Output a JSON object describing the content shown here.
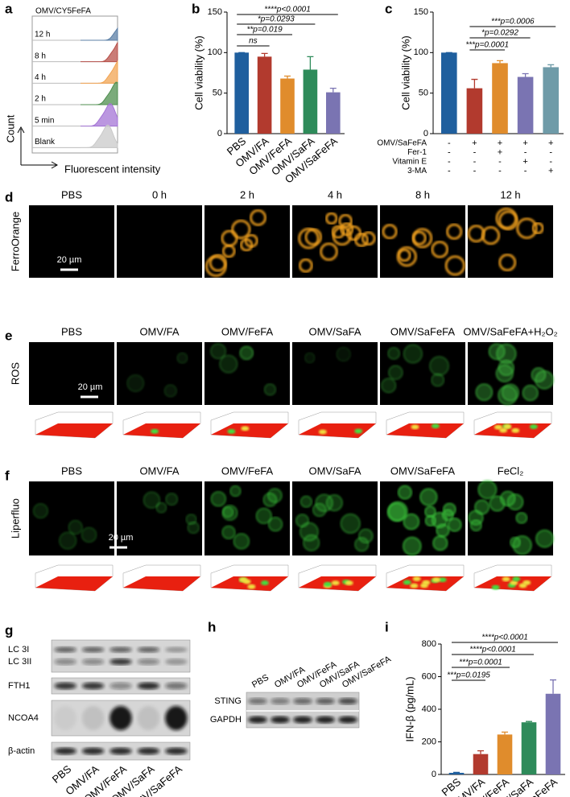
{
  "panel_labels": [
    "a",
    "b",
    "c",
    "d",
    "e",
    "f",
    "g",
    "h",
    "i"
  ],
  "panel_a": {
    "title": "OMV/CY5FeFA",
    "rows": [
      "12 h",
      "8 h",
      "4 h",
      "2 h",
      "5 min",
      "Blank"
    ],
    "y_label": "Count",
    "x_label": "Fluorescent intensity"
  },
  "chart_data": [
    {
      "type": "bar",
      "y_label": "Cell viability (%)",
      "categories": [
        "PBS",
        "OMV/FA",
        "OMV/FeFA",
        "OMV/SaFA",
        "OMV/SaFeFA"
      ],
      "values": [
        100,
        95,
        68,
        79,
        51
      ],
      "errors": [
        0,
        4,
        3,
        16,
        5
      ],
      "colors": [
        "#1f5f9e",
        "#b23a2e",
        "#e08c2c",
        "#2e8b5a",
        "#7a74b2"
      ],
      "ylim": [
        0,
        150
      ],
      "yticks": [
        0,
        50,
        100,
        150
      ],
      "annotations": [
        "ns",
        "**p=0.019",
        "*p=0.0293",
        "****p<0.0001"
      ]
    },
    {
      "type": "bar",
      "y_label": "Cell viability (%)",
      "values": [
        100,
        56,
        87,
        70,
        82
      ],
      "errors": [
        0,
        11,
        3,
        4,
        3
      ],
      "colors": [
        "#1f5f9e",
        "#b23a2e",
        "#e08c2c",
        "#7a74b2",
        "#6f9ba8"
      ],
      "ylim": [
        0,
        150
      ],
      "yticks": [
        0,
        50,
        100,
        150
      ],
      "annotations": [
        "***p=0.0001",
        "*p=0.0292",
        "***p=0.0006"
      ],
      "treatments": [
        {
          "label": "OMV/SaFeFA",
          "signs": [
            "-",
            "+",
            "+",
            "+",
            "+"
          ]
        },
        {
          "label": "Fer-1",
          "signs": [
            "-",
            "-",
            "+",
            "-",
            "-"
          ]
        },
        {
          "label": "Vitamin E",
          "signs": [
            "-",
            "-",
            "-",
            "+",
            "-"
          ]
        },
        {
          "label": "3-MA",
          "signs": [
            "-",
            "-",
            "-",
            "-",
            "+"
          ]
        }
      ]
    },
    {
      "type": "bar",
      "y_label": "IFN-β (pg/mL)",
      "categories": [
        "PBS",
        "OMV/FA",
        "OMV/FeFA",
        "OMV/SaFA",
        "OMV/SaFeFA"
      ],
      "values": [
        10,
        125,
        245,
        320,
        495
      ],
      "errors": [
        3,
        20,
        15,
        5,
        85
      ],
      "colors": [
        "#1f5f9e",
        "#b23a2e",
        "#e08c2c",
        "#2e8b5a",
        "#7a74b2"
      ],
      "ylim": [
        0,
        800
      ],
      "yticks": [
        0,
        200,
        400,
        600,
        800
      ],
      "annotations": [
        "***p=0.0195",
        "***p=0.0001",
        "****p<0.0001",
        "****p<0.0001"
      ]
    }
  ],
  "panel_d": {
    "stain": "FerroOrange",
    "columns": [
      "PBS",
      "0 h",
      "2 h",
      "4 h",
      "8 h",
      "12 h"
    ],
    "scale_bar": "20 µm"
  },
  "panel_e": {
    "stain": "ROS",
    "columns": [
      "PBS",
      "OMV/FA",
      "OMV/FeFA",
      "OMV/SaFA",
      "OMV/SaFeFA",
      "OMV/SaFeFA+H₂O₂"
    ],
    "scale_bar": "20 µm"
  },
  "panel_f": {
    "stain": "Liperfluo",
    "columns": [
      "PBS",
      "OMV/FA",
      "OMV/FeFA",
      "OMV/SaFA",
      "OMV/SaFeFA",
      "FeCl₂"
    ],
    "scale_bar": "20 µm"
  },
  "panel_g": {
    "rows": [
      "LC 3I",
      "LC 3II",
      "FTH1",
      "NCOA4",
      "β-actin"
    ],
    "columns": [
      "PBS",
      "OMV/FA",
      "OMV/FeFA",
      "OMV/SaFA",
      "OMV/SaFeFA"
    ]
  },
  "panel_h": {
    "rows": [
      "STING",
      "GAPDH"
    ],
    "columns": [
      "PBS",
      "OMV/FA",
      "OMV/FeFA",
      "OMV/SaFA",
      "OMV/SaFeFA"
    ]
  }
}
